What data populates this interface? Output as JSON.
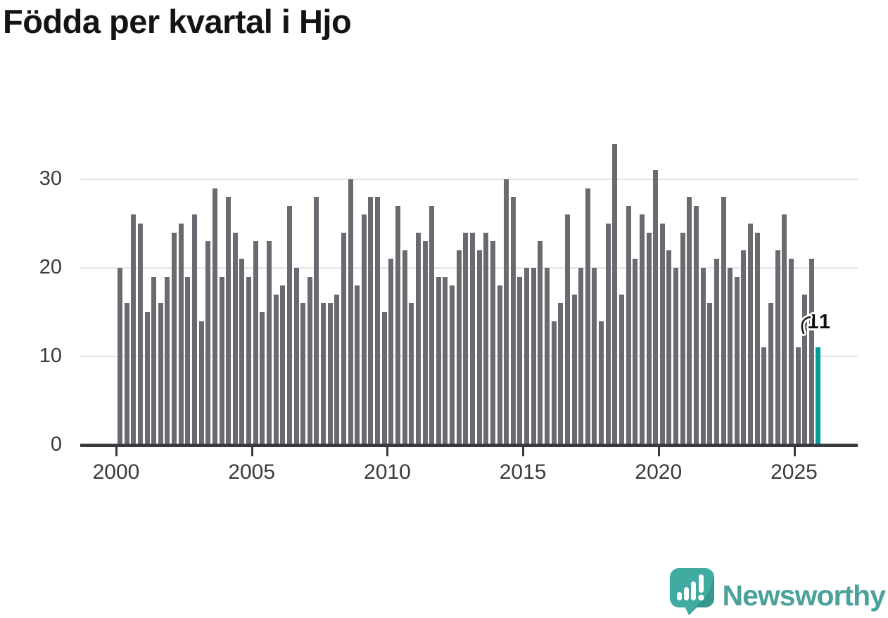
{
  "title": "Födda per kvartal i Hjo",
  "chart_data": {
    "type": "bar",
    "title": "Födda per kvartal i Hjo",
    "x_unit": "quarter",
    "start_year": 2000,
    "quarters": [
      "2000-Q1",
      "2000-Q2",
      "2000-Q3",
      "2000-Q4",
      "2001-Q1",
      "2001-Q2",
      "2001-Q3",
      "2001-Q4",
      "2002-Q1",
      "2002-Q2",
      "2002-Q3",
      "2002-Q4",
      "2003-Q1",
      "2003-Q2",
      "2003-Q3",
      "2003-Q4",
      "2004-Q1",
      "2004-Q2",
      "2004-Q3",
      "2004-Q4",
      "2005-Q1",
      "2005-Q2",
      "2005-Q3",
      "2005-Q4",
      "2006-Q1",
      "2006-Q2",
      "2006-Q3",
      "2006-Q4",
      "2007-Q1",
      "2007-Q2",
      "2007-Q3",
      "2007-Q4",
      "2008-Q1",
      "2008-Q2",
      "2008-Q3",
      "2008-Q4",
      "2009-Q1",
      "2009-Q2",
      "2009-Q3",
      "2009-Q4",
      "2010-Q1",
      "2010-Q2",
      "2010-Q3",
      "2010-Q4",
      "2011-Q1",
      "2011-Q2",
      "2011-Q3",
      "2011-Q4",
      "2012-Q1",
      "2012-Q2",
      "2012-Q3",
      "2012-Q4",
      "2013-Q1",
      "2013-Q2",
      "2013-Q3",
      "2013-Q4",
      "2014-Q1",
      "2014-Q2",
      "2014-Q3",
      "2014-Q4",
      "2015-Q1",
      "2015-Q2",
      "2015-Q3",
      "2015-Q4",
      "2016-Q1",
      "2016-Q2",
      "2016-Q3",
      "2016-Q4",
      "2017-Q1",
      "2017-Q2",
      "2017-Q3",
      "2017-Q4",
      "2018-Q1",
      "2018-Q2",
      "2018-Q3",
      "2018-Q4",
      "2019-Q1",
      "2019-Q2",
      "2019-Q3",
      "2019-Q4",
      "2020-Q1",
      "2020-Q2",
      "2020-Q3",
      "2020-Q4",
      "2021-Q1",
      "2021-Q2",
      "2021-Q3",
      "2021-Q4",
      "2022-Q1",
      "2022-Q2",
      "2022-Q3",
      "2022-Q4",
      "2023-Q1",
      "2023-Q2",
      "2023-Q3",
      "2023-Q4",
      "2024-Q1",
      "2024-Q2",
      "2024-Q3",
      "2024-Q4",
      "2025-Q1",
      "2025-Q2",
      "2025-Q3",
      "2025-Q4"
    ],
    "values": [
      20,
      16,
      26,
      25,
      15,
      19,
      16,
      19,
      24,
      25,
      19,
      26,
      14,
      23,
      29,
      19,
      28,
      24,
      21,
      19,
      23,
      15,
      23,
      17,
      18,
      27,
      20,
      16,
      19,
      28,
      16,
      16,
      17,
      24,
      30,
      18,
      26,
      28,
      28,
      15,
      21,
      27,
      22,
      16,
      24,
      23,
      27,
      19,
      19,
      18,
      22,
      24,
      24,
      22,
      24,
      23,
      18,
      30,
      28,
      19,
      20,
      20,
      23,
      20,
      14,
      16,
      26,
      17,
      20,
      29,
      20,
      14,
      25,
      34,
      17,
      27,
      21,
      26,
      24,
      31,
      25,
      22,
      20,
      24,
      28,
      27,
      20,
      16,
      21,
      28,
      20,
      19,
      22,
      25,
      24,
      11,
      16,
      22,
      26,
      21,
      11,
      17,
      21,
      11
    ],
    "highlight_index": 103,
    "highlight_value_label": "11",
    "y_ticks": [
      0,
      10,
      20,
      30
    ],
    "x_tick_labels": [
      "2000",
      "2005",
      "2010",
      "2015",
      "2020",
      "2025"
    ],
    "ylim": [
      0,
      35
    ],
    "grid": "horizontal",
    "legend": "none",
    "bar_color": "#6b6a71",
    "highlight_color": "#009e98",
    "axis_color": "#38383d"
  },
  "branding": {
    "logo_text": "Newsworthy",
    "logo_color": "#4aa29b",
    "bubble_color": "#40aba1",
    "bubble_shade_color": "#35968d",
    "bubble_icon": "bar-chart-exclamation-icon"
  }
}
